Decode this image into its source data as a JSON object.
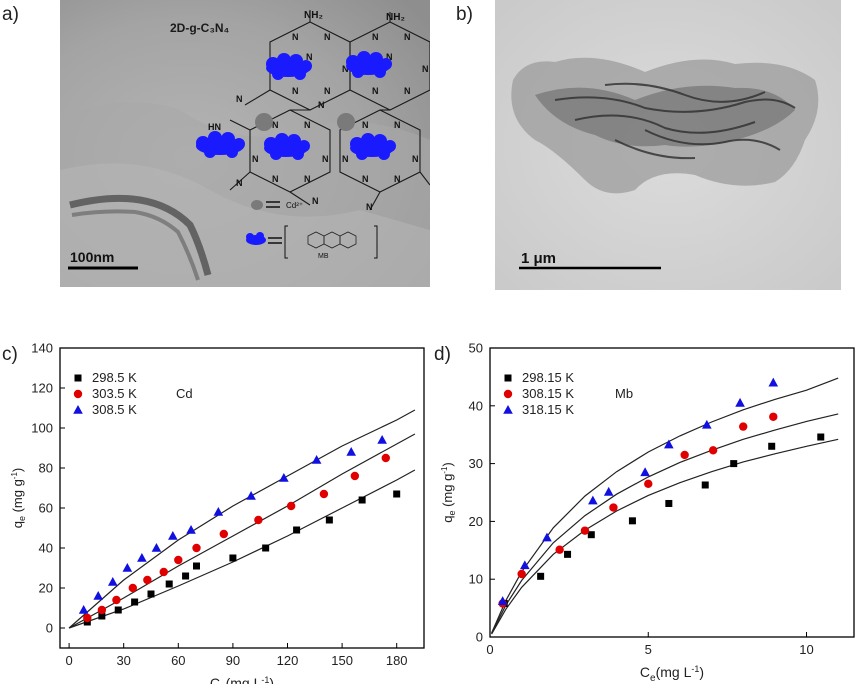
{
  "panels": {
    "a": {
      "letter": "a)",
      "title": "2D-g-C₃N₄",
      "nh2_label": "NH₂",
      "nh2_label_2": "NH₂",
      "hn_label": "HN",
      "cd_legend": "Cd²⁺",
      "mb_label": "MB",
      "scale_bar": "100nm",
      "n_atom": "N"
    },
    "b": {
      "letter": "b)",
      "scale_bar": "1 μm"
    },
    "c": {
      "letter": "c)"
    },
    "d": {
      "letter": "d)"
    }
  },
  "colors": {
    "series1": "#000000",
    "series2": "#e00000",
    "series3": "#1010e0",
    "mb_blob": "#1a1aff",
    "tem_bg": "#9a9a9a"
  },
  "chart_data": [
    {
      "type": "scatter",
      "panel": "c",
      "annotation": "Cd",
      "xlabel_main": "C",
      "xlabel_sub": "e",
      "xlabel_units": "(mg L",
      "xlabel_exp": "-1",
      "xlabel_close": ")",
      "ylabel_main": "q",
      "ylabel_sub": "e",
      "ylabel_units": " (mg g",
      "ylabel_exp": "-1",
      "ylabel_close": ")",
      "xlim": [
        -5,
        195
      ],
      "ylim": [
        -10,
        140
      ],
      "xticks": [
        0,
        30,
        60,
        90,
        120,
        150,
        180
      ],
      "yticks": [
        0,
        20,
        40,
        60,
        80,
        100,
        120,
        140
      ],
      "legend_position": "top-left",
      "fit_lines": true,
      "series": [
        {
          "name": "298.5 K",
          "marker": "square",
          "x": [
            10,
            18,
            27,
            36,
            45,
            55,
            64,
            70,
            90,
            108,
            125,
            143,
            161,
            180
          ],
          "y": [
            3,
            6,
            9,
            13,
            17,
            22,
            26,
            31,
            35,
            40,
            49,
            54,
            64,
            67
          ],
          "fit": [
            [
              0,
              0
            ],
            [
              30,
              9.5
            ],
            [
              60,
              21
            ],
            [
              90,
              33
            ],
            [
              120,
              46
            ],
            [
              150,
              60
            ],
            [
              180,
              74
            ],
            [
              190,
              79
            ]
          ]
        },
        {
          "name": "303.5 K",
          "marker": "circle",
          "x": [
            10,
            18,
            26,
            35,
            43,
            52,
            60,
            70,
            85,
            104,
            122,
            140,
            157,
            174
          ],
          "y": [
            5,
            9,
            14,
            20,
            24,
            28,
            34,
            40,
            47,
            54,
            61,
            67,
            76,
            85
          ],
          "fit": [
            [
              0,
              0
            ],
            [
              30,
              15
            ],
            [
              60,
              31
            ],
            [
              90,
              46
            ],
            [
              120,
              61
            ],
            [
              150,
              77
            ],
            [
              180,
              92
            ],
            [
              190,
              97
            ]
          ]
        },
        {
          "name": "308.5 K",
          "marker": "triangle",
          "x": [
            8,
            16,
            24,
            32,
            40,
            48,
            57,
            67,
            82,
            100,
            118,
            136,
            155,
            172
          ],
          "y": [
            9,
            16,
            23,
            30,
            35,
            40,
            46,
            49,
            58,
            66,
            75,
            84,
            88,
            94
          ],
          "fit": [
            [
              0,
              0
            ],
            [
              30,
              24
            ],
            [
              60,
              44
            ],
            [
              90,
              61
            ],
            [
              120,
              76
            ],
            [
              150,
              91
            ],
            [
              180,
              104
            ],
            [
              190,
              109
            ]
          ]
        }
      ]
    },
    {
      "type": "scatter",
      "panel": "d",
      "annotation": "Mb",
      "xlabel_main": "C",
      "xlabel_sub": "e",
      "xlabel_units": "(mg L",
      "xlabel_exp": "-1",
      "xlabel_close": ")",
      "ylabel_main": "q",
      "ylabel_sub": "e",
      "ylabel_units": " (mg g",
      "ylabel_exp": "-1",
      "ylabel_close": ")",
      "xlim": [
        0,
        11.5
      ],
      "ylim": [
        0,
        50
      ],
      "xticks": [
        0,
        5,
        10
      ],
      "yticks": [
        0,
        10,
        20,
        30,
        40,
        50
      ],
      "legend_position": "top-left",
      "fit_lines": true,
      "series": [
        {
          "name": "298.15 K",
          "marker": "square",
          "x": [
            0.45,
            1.6,
            2.45,
            3.2,
            4.5,
            5.65,
            6.8,
            7.7,
            8.9,
            10.45
          ],
          "y": [
            5.8,
            10.5,
            14.3,
            17.7,
            20.1,
            23.1,
            26.3,
            30.0,
            33.0,
            34.6
          ],
          "fit": [
            [
              0.05,
              0.5
            ],
            [
              0.5,
              4.8
            ],
            [
              1,
              8.6
            ],
            [
              2,
              14.3
            ],
            [
              3,
              18.5
            ],
            [
              4,
              21.8
            ],
            [
              5,
              24.5
            ],
            [
              6,
              26.7
            ],
            [
              7,
              28.6
            ],
            [
              8,
              30.3
            ],
            [
              9,
              31.7
            ],
            [
              10,
              33.0
            ],
            [
              11,
              34.2
            ]
          ]
        },
        {
          "name": "308.15 K",
          "marker": "circle",
          "x": [
            0.4,
            1.0,
            2.2,
            3.0,
            3.9,
            5.0,
            6.15,
            7.05,
            8.0,
            8.95
          ],
          "y": [
            5.8,
            10.9,
            15.1,
            18.4,
            22.4,
            26.5,
            31.5,
            32.3,
            36.4,
            38.1
          ],
          "fit": [
            [
              0.05,
              0.6
            ],
            [
              0.5,
              5.5
            ],
            [
              1,
              9.8
            ],
            [
              2,
              16.3
            ],
            [
              3,
              21.0
            ],
            [
              4,
              24.7
            ],
            [
              5,
              27.7
            ],
            [
              6,
              30.2
            ],
            [
              7,
              32.3
            ],
            [
              8,
              34.2
            ],
            [
              9,
              35.8
            ],
            [
              10,
              37.3
            ],
            [
              11,
              38.6
            ]
          ]
        },
        {
          "name": "318.15 K",
          "marker": "triangle",
          "x": [
            0.4,
            1.1,
            1.8,
            3.25,
            3.75,
            4.9,
            5.65,
            6.85,
            7.9,
            8.95
          ],
          "y": [
            6.2,
            12.4,
            17.2,
            23.6,
            25.1,
            28.5,
            33.3,
            36.7,
            40.5,
            44.0
          ],
          "fit": [
            [
              0.05,
              0.7
            ],
            [
              0.5,
              6.3
            ],
            [
              1,
              11.3
            ],
            [
              2,
              18.9
            ],
            [
              3,
              24.4
            ],
            [
              4,
              28.6
            ],
            [
              5,
              32.0
            ],
            [
              6,
              34.8
            ],
            [
              7,
              37.2
            ],
            [
              8,
              39.3
            ],
            [
              9,
              41.1
            ],
            [
              10,
              42.7
            ],
            [
              11,
              44.8
            ]
          ]
        }
      ]
    }
  ]
}
